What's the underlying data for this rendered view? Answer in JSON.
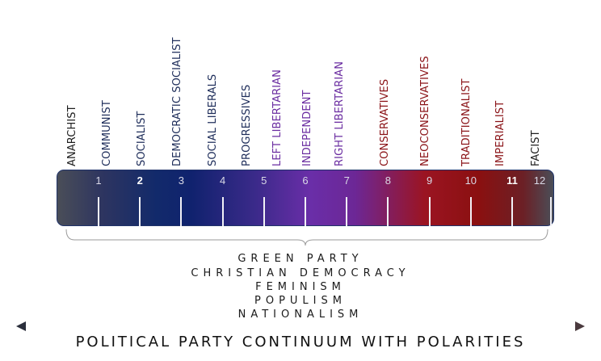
{
  "diagram": {
    "parties": [
      {
        "label": "ANARCHIST",
        "color": "#1d1d1d"
      },
      {
        "label": "COMMUNIST",
        "color": "#1e2d5a"
      },
      {
        "label": "SOCIALIST",
        "color": "#1e2d5a"
      },
      {
        "label": "DEMOCRATIC SOCIALIST",
        "color": "#1e2d5a"
      },
      {
        "label": "SOCIAL LIBERALS",
        "color": "#1e2d5a"
      },
      {
        "label": "PROGRESSIVES",
        "color": "#1e2d5a"
      },
      {
        "label": "LEFT LIBERTARIAN",
        "color": "#6a2ca0"
      },
      {
        "label": "INDEPENDENT",
        "color": "#6a2ca0"
      },
      {
        "label": "RIGHT LIBERTARIAN",
        "color": "#6a2ca0"
      },
      {
        "label": "CONSERVATIVES",
        "color": "#8a1216"
      },
      {
        "label": "NEOCONSERVATIVES",
        "color": "#8a1216"
      },
      {
        "label": "TRADITIONALIST",
        "color": "#8a1216"
      },
      {
        "label": "IMPERIALIST",
        "color": "#8a1216"
      },
      {
        "label": "FACIST",
        "color": "#1d1d1d"
      }
    ],
    "scale_numbers": [
      "1",
      "2",
      "3",
      "4",
      "5",
      "6",
      "7",
      "8",
      "9",
      "10",
      "11",
      "12"
    ],
    "bold_numbers": [
      "2",
      "11"
    ],
    "bracket_items": [
      "GREEN PARTY",
      "CHRISTIAN DEMOCRACY",
      "FEMINISM",
      "POPULISM",
      "NATIONALISM"
    ],
    "title": "POLITICAL PARTY CONTINUUM WITH POLARITIES",
    "colors": {
      "left": "#2b3a6a",
      "center": "#6a2ca0",
      "right": "#8a1216",
      "bar_border": "#20336a"
    }
  }
}
